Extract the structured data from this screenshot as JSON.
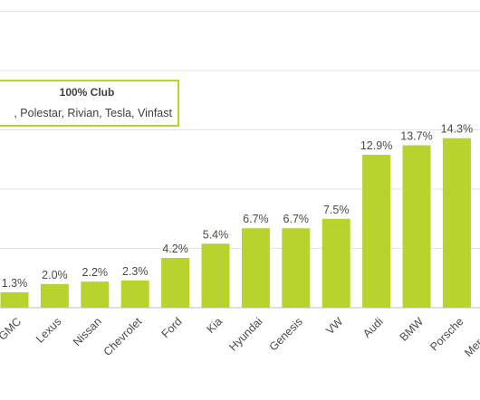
{
  "chart_data": {
    "type": "bar",
    "title": "",
    "xlabel": "",
    "ylabel": "",
    "ylim": [
      0,
      20
    ],
    "grid": true,
    "bar_color": "#b9d32e",
    "categories": [
      "GMC",
      "Lexus",
      "Nissan",
      "Chevrolet",
      "Ford",
      "Kia",
      "Hyundai",
      "Genesis",
      "VW",
      "Audi",
      "BMW",
      "Porsche",
      "Mercedes"
    ],
    "values": [
      1.3,
      2.0,
      2.2,
      2.3,
      4.2,
      5.4,
      6.7,
      6.7,
      7.5,
      12.9,
      13.7,
      14.3,
      null
    ],
    "value_labels": [
      "1.3%",
      "2.0%",
      "2.2%",
      "2.3%",
      "4.2%",
      "5.4%",
      "6.7%",
      "6.7%",
      "7.5%",
      "12.9%",
      "13.7%",
      "14.3%",
      ""
    ],
    "annotation": {
      "title": "100% Club",
      "members": ", Polestar, Rivian, Tesla, Vinfast"
    }
  }
}
